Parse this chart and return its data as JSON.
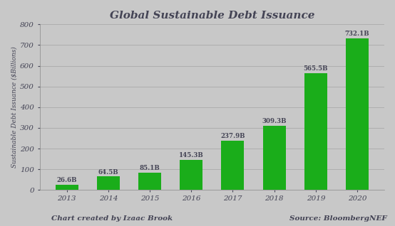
{
  "title": "Global Sustainable Debt Issuance",
  "xlabel": "",
  "ylabel": "Sustainable Debt Issuance ($Billions)",
  "categories": [
    "2013",
    "2014",
    "2015",
    "2016",
    "2017",
    "2018",
    "2019",
    "2020"
  ],
  "values": [
    26.6,
    64.5,
    85.1,
    145.3,
    237.9,
    309.3,
    565.5,
    732.1
  ],
  "labels": [
    "26.6B",
    "64.5B",
    "85.1B",
    "145.3B",
    "237.9B",
    "309.3B",
    "565.5B",
    "732.1B"
  ],
  "bar_color": "#1aad1a",
  "ylim": [
    0,
    800
  ],
  "yticks": [
    0,
    100,
    200,
    300,
    400,
    500,
    600,
    700,
    800
  ],
  "background_color": "#c8c8c8",
  "title_fontsize": 11,
  "axis_label_fontsize": 6.5,
  "tick_fontsize": 7.5,
  "bar_label_fontsize": 6.2,
  "footer_left": "Chart created by Izaac Brook",
  "footer_right": "Source: BloombergNEF",
  "footer_fontsize": 7.5,
  "grid_color": "#b0b0b0",
  "text_color": "#444455"
}
